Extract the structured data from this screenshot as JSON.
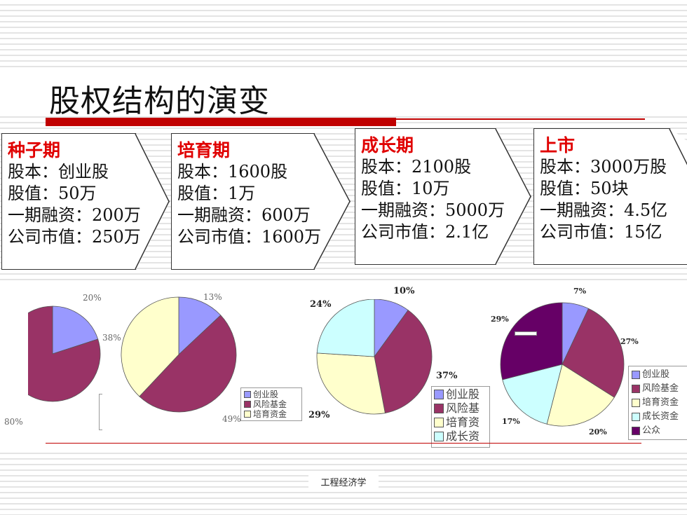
{
  "title": "股权结构的演变",
  "footer": "工程经济学",
  "stages": [
    {
      "name": "种子期",
      "lines": [
        "股本：创业股",
        "股值：50万",
        "一期融资：200万",
        "公司市值：250万"
      ]
    },
    {
      "name": "培育期",
      "lines": [
        "股本：1600股",
        "股值：1万",
        "一期融资：600万",
        "公司市值：1600万"
      ]
    },
    {
      "name": "成长期",
      "lines": [
        "股本：2100股",
        "股值：10万",
        "一期融资：5000万",
        "公司市值：2.1亿"
      ]
    },
    {
      "name": "上市",
      "lines": [
        "股本：3000万股",
        "股值：50块",
        "一期融资：4.5亿",
        "公司市值：15亿"
      ]
    }
  ],
  "colors": {
    "创业股": "#9999ff",
    "风险基金": "#993366",
    "培育资金": "#ffffcc",
    "成长资金": "#ccffff",
    "公众": "#660066"
  },
  "chart_data": [
    {
      "type": "pie",
      "categories": [
        "创业股",
        "风险基金"
      ],
      "values": [
        20,
        80
      ],
      "labels": [
        "20%",
        "80%"
      ]
    },
    {
      "type": "pie",
      "categories": [
        "创业股",
        "风险基金",
        "培育资金"
      ],
      "values": [
        13,
        49,
        38
      ],
      "labels": [
        "13%",
        "49%",
        "38%"
      ],
      "legend": [
        "创业股",
        "风险基金",
        "培育资金"
      ]
    },
    {
      "type": "pie",
      "categories": [
        "创业股",
        "风险基金",
        "培育资金",
        "成长资金"
      ],
      "values": [
        10,
        37,
        29,
        24
      ],
      "labels": [
        "10%",
        "37%",
        "29%",
        "24%"
      ],
      "legend": [
        "创业股",
        "风险基",
        "培育资",
        "成长资"
      ]
    },
    {
      "type": "pie",
      "categories": [
        "创业股",
        "风险基金",
        "培育资金",
        "成长资金",
        "公众"
      ],
      "values": [
        7,
        27,
        20,
        17,
        29
      ],
      "labels": [
        "7%",
        "27%",
        "20%",
        "17%",
        "29%"
      ],
      "legend": [
        "创业股",
        "风险基金",
        "培育资金",
        "成长资金",
        "公众"
      ]
    }
  ]
}
